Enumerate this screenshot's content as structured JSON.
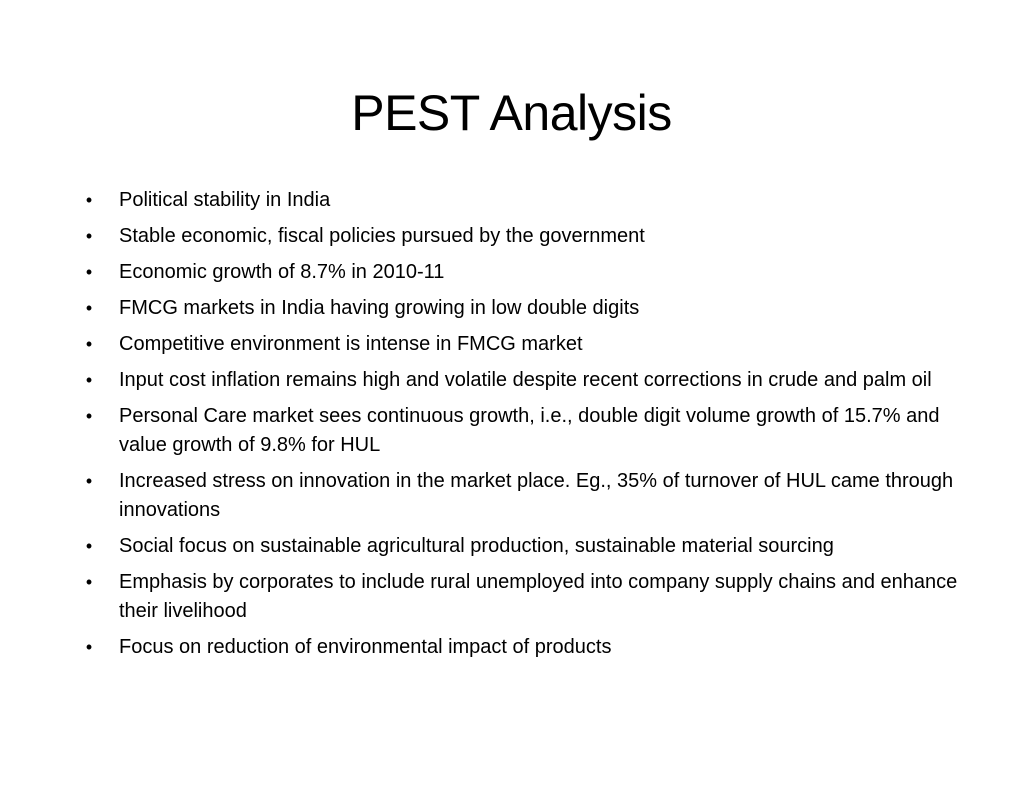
{
  "slide": {
    "title": "PEST Analysis",
    "bullet_glyph": "•",
    "bullets": [
      "Political stability in India",
      "Stable economic, fiscal policies pursued by the government",
      "Economic growth of 8.7% in 2010-11",
      "FMCG markets in India having growing in low double digits",
      "Competitive environment is intense in FMCG market",
      "Input cost inflation remains high and volatile despite recent corrections in crude and palm oil",
      "Personal Care market sees continuous growth, i.e., double digit volume growth of 15.7% and value growth of 9.8% for HUL",
      "Increased stress on innovation in the market place. Eg., 35% of turnover of HUL came through innovations",
      "Social focus on sustainable agricultural production, sustainable material sourcing",
      "Emphasis by corporates to include rural unemployed into company supply chains and enhance their livelihood",
      "Focus on reduction of environmental impact of products"
    ]
  }
}
